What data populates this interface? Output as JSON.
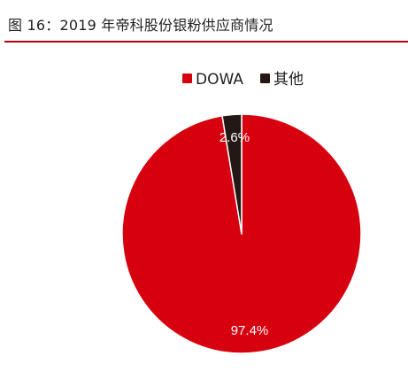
{
  "title": "图 16：2019 年帝科股份银粉供应商情况",
  "colors": {
    "title_rule": "#b3000f",
    "slice_dowa": "#d7000f",
    "slice_other": "#231815",
    "slice_border": "#ffffff",
    "label_text": "#ffffff"
  },
  "chart_data": {
    "type": "pie",
    "title": "",
    "legend_position": "top-right",
    "slices": [
      {
        "label": "DOWA",
        "value": 97.4,
        "data_label": "97.4%",
        "color": "#d7000f"
      },
      {
        "label": "其他",
        "value": 2.6,
        "data_label": "2.6%",
        "color": "#231815"
      }
    ]
  }
}
